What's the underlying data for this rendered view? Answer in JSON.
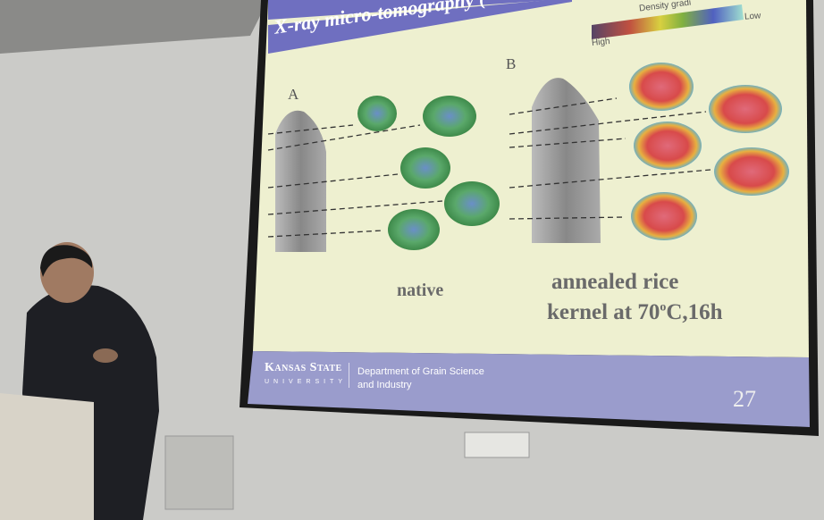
{
  "slide": {
    "title": "X-ray micro-tomography (",
    "legend": {
      "title": "Density gradi",
      "high": "High",
      "low": "Low"
    },
    "panel_a_label": "A",
    "panel_b_label": "B",
    "caption_native": "native",
    "caption_annealed_line1": "annealed rice",
    "caption_annealed_line2": "kernel at 70",
    "caption_annealed_sup": "o",
    "caption_annealed_line2_end": "C,16h",
    "footer": {
      "university_name": "Kansas State",
      "university_sub": "UNIVERSITY",
      "department": "Department of Grain Science and Industry",
      "page_number": "27"
    }
  },
  "colors": {
    "title_band": "#6f6fc0",
    "slide_bg": "#eef0d0",
    "footer_band": "#9a9ccc"
  }
}
